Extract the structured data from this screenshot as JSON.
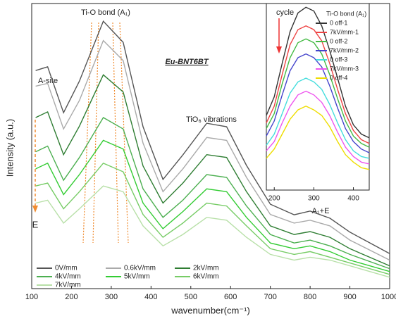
{
  "chart_data": [
    {
      "type": "line",
      "x_label": "wavenumber(cm⁻¹)",
      "y_label": "Intensity (a.u.)",
      "annotations": [
        "Ti-O bond (A₁)",
        "Eu-BNT6BT",
        "A-site",
        "TiO₆ vibrations",
        "A₁+E",
        "E"
      ],
      "xlim": [
        100,
        1000
      ],
      "xticks": [
        100,
        200,
        300,
        400,
        500,
        600,
        700,
        800,
        900,
        1000
      ],
      "ylim": [
        0,
        100
      ],
      "x": [
        110,
        140,
        180,
        220,
        280,
        330,
        380,
        430,
        480,
        540,
        590,
        640,
        700,
        760,
        800,
        850,
        900,
        1000
      ],
      "series": [
        {
          "name": "0V/mm",
          "color": "#555555",
          "values": [
            76.5,
            77.8,
            61.7,
            72.8,
            93.8,
            86.4,
            56.8,
            38.3,
            46.9,
            58,
            56.8,
            43.2,
            29.6,
            25.9,
            27.2,
            24.7,
            19.8,
            12.3
          ]
        },
        {
          "name": "0.6kV/mm",
          "color": "#aaaaaa",
          "values": [
            71,
            72,
            56,
            66,
            87,
            80,
            51,
            34,
            42,
            53,
            52,
            39,
            26,
            23,
            24,
            22,
            17,
            10
          ]
        },
        {
          "name": "2kV/mm",
          "color": "#2e7d32",
          "values": [
            60,
            62,
            47,
            57,
            75,
            69,
            43,
            30,
            37,
            47,
            46,
            34,
            22,
            19,
            20,
            18,
            14,
            8
          ]
        },
        {
          "name": "4kV/mm",
          "color": "#4caf50",
          "values": [
            48,
            50,
            38,
            46,
            60,
            56,
            35,
            25,
            31,
            40,
            39,
            29,
            19,
            16,
            17,
            15,
            12,
            7
          ]
        },
        {
          "name": "5kV/mm",
          "color": "#33cc33",
          "values": [
            42,
            44,
            33,
            40,
            52,
            49,
            30,
            21,
            27,
            35,
            34,
            25,
            16,
            14,
            15,
            13,
            10,
            6
          ]
        },
        {
          "name": "6kV/mm",
          "color": "#77cc66",
          "values": [
            36,
            37,
            28,
            34,
            44,
            41,
            26,
            18,
            23,
            30,
            29,
            22,
            14,
            12,
            13,
            11,
            9,
            5
          ]
        },
        {
          "name": "7kV/mm",
          "color": "#b8e0a8",
          "values": [
            30,
            31,
            23,
            28,
            36,
            34,
            22,
            15,
            19,
            25,
            24,
            18,
            12,
            10,
            11,
            10,
            8,
            4
          ]
        }
      ]
    },
    {
      "type": "line",
      "legend_title": "Ti-O bond (A₁)",
      "annotations": [
        "cycle"
      ],
      "xlim": [
        180,
        440
      ],
      "xticks": [
        200,
        300,
        400
      ],
      "ylim": [
        0,
        100
      ],
      "x": [
        180,
        200,
        220,
        240,
        260,
        280,
        300,
        320,
        340,
        360,
        380,
        400,
        420,
        440
      ],
      "series": [
        {
          "name": "0 off-1",
          "color": "#333333",
          "values": [
            40,
            50,
            68,
            85,
            95,
            98,
            96,
            88,
            75,
            60,
            45,
            35,
            30,
            28
          ]
        },
        {
          "name": "7kV/mm-1",
          "color": "#ee4444",
          "values": [
            36,
            45,
            62,
            78,
            86,
            88,
            86,
            80,
            68,
            54,
            41,
            32,
            27,
            25
          ]
        },
        {
          "name": "0 off-2",
          "color": "#44bb44",
          "values": [
            33,
            41,
            57,
            71,
            79,
            81,
            79,
            73,
            62,
            49,
            37,
            29,
            25,
            23
          ]
        },
        {
          "name": "7kV/mm-2",
          "color": "#4444cc",
          "values": [
            29,
            37,
            51,
            64,
            71,
            73,
            71,
            66,
            56,
            44,
            33,
            26,
            22,
            20
          ]
        },
        {
          "name": "0 off-3",
          "color": "#44dddd",
          "values": [
            24,
            30,
            41,
            52,
            58,
            60,
            58,
            54,
            46,
            36,
            27,
            21,
            18,
            17
          ]
        },
        {
          "name": "7kV/mm-3",
          "color": "#ee55ee",
          "values": [
            21,
            26,
            36,
            45,
            51,
            53,
            51,
            47,
            40,
            31,
            23,
            18,
            15,
            14
          ]
        },
        {
          "name": "0 off-4",
          "color": "#eedd00",
          "values": [
            17,
            22,
            30,
            38,
            43,
            45,
            43,
            40,
            34,
            26,
            19,
            15,
            12,
            11
          ]
        }
      ]
    }
  ]
}
